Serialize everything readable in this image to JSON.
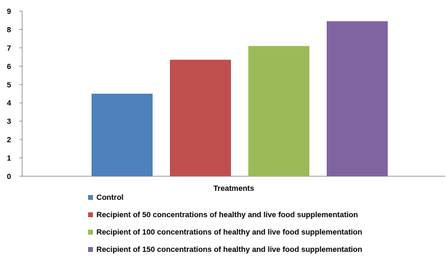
{
  "chart_data": {
    "type": "bar",
    "title": "",
    "xlabel": "Treatments",
    "ylabel": "",
    "ylim": [
      0,
      9
    ],
    "yticks": [
      0,
      1,
      2,
      3,
      4,
      5,
      6,
      7,
      8,
      9
    ],
    "grid": false,
    "legend_position": "bottom",
    "series": [
      {
        "name": "Control",
        "value": 4.5,
        "color": "#4F81BD"
      },
      {
        "name": "Recipient of 50 concentrations of healthy and live food supplementation",
        "value": 6.35,
        "color": "#C0504D"
      },
      {
        "name": "Recipient of 100 concentrations of healthy and live food supplementation",
        "value": 7.1,
        "color": "#9BBB59"
      },
      {
        "name": "Recipient of 150 concentrations of healthy and live food supplementation",
        "value": 8.45,
        "color": "#8064A2"
      }
    ]
  }
}
